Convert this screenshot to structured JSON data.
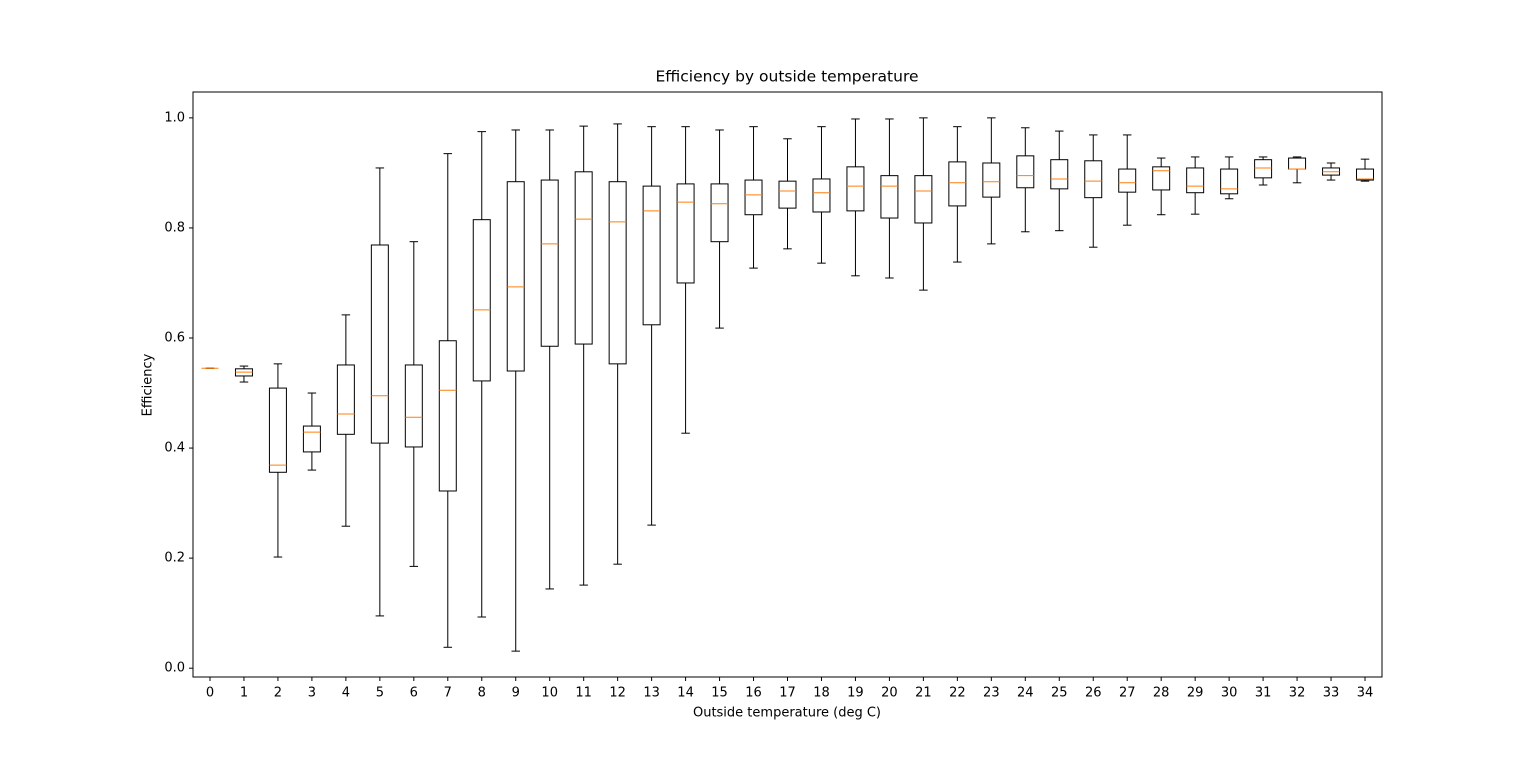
{
  "chart_data": {
    "type": "boxplot",
    "title": "Efficiency by outside temperature",
    "x_label": "Outside temperature (deg C)",
    "y_label": "Efficiency",
    "categories": [
      "0",
      "1",
      "2",
      "3",
      "4",
      "5",
      "6",
      "7",
      "8",
      "9",
      "10",
      "11",
      "12",
      "13",
      "14",
      "15",
      "16",
      "17",
      "18",
      "19",
      "20",
      "21",
      "22",
      "23",
      "24",
      "25",
      "26",
      "27",
      "28",
      "29",
      "30",
      "31",
      "32",
      "33",
      "34"
    ],
    "whislo": [
      0.545,
      0.52,
      0.202,
      0.36,
      0.258,
      0.095,
      0.185,
      0.038,
      0.093,
      0.031,
      0.144,
      0.151,
      0.189,
      0.26,
      0.427,
      0.618,
      0.727,
      0.762,
      0.736,
      0.713,
      0.709,
      0.687,
      0.738,
      0.771,
      0.793,
      0.795,
      0.765,
      0.805,
      0.824,
      0.825,
      0.853,
      0.878,
      0.882,
      0.887,
      0.885
    ],
    "q1": [
      0.545,
      0.531,
      0.356,
      0.393,
      0.425,
      0.409,
      0.402,
      0.322,
      0.522,
      0.54,
      0.585,
      0.589,
      0.553,
      0.624,
      0.7,
      0.775,
      0.824,
      0.836,
      0.829,
      0.831,
      0.818,
      0.809,
      0.84,
      0.856,
      0.873,
      0.871,
      0.855,
      0.865,
      0.869,
      0.864,
      0.862,
      0.891,
      0.907,
      0.896,
      0.887
    ],
    "median": [
      0.545,
      0.538,
      0.369,
      0.429,
      0.462,
      0.495,
      0.456,
      0.505,
      0.651,
      0.693,
      0.771,
      0.816,
      0.811,
      0.831,
      0.847,
      0.844,
      0.86,
      0.867,
      0.864,
      0.876,
      0.876,
      0.867,
      0.882,
      0.884,
      0.895,
      0.889,
      0.885,
      0.882,
      0.904,
      0.876,
      0.871,
      0.909,
      0.907,
      0.902,
      0.889
    ],
    "q3": [
      0.545,
      0.544,
      0.509,
      0.44,
      0.551,
      0.769,
      0.551,
      0.595,
      0.815,
      0.884,
      0.887,
      0.902,
      0.884,
      0.876,
      0.88,
      0.88,
      0.887,
      0.885,
      0.889,
      0.911,
      0.895,
      0.895,
      0.92,
      0.918,
      0.931,
      0.924,
      0.922,
      0.907,
      0.911,
      0.909,
      0.907,
      0.924,
      0.927,
      0.909,
      0.907
    ],
    "whishi": [
      0.545,
      0.549,
      0.553,
      0.5,
      0.642,
      0.909,
      0.775,
      0.935,
      0.975,
      0.978,
      0.978,
      0.985,
      0.989,
      0.984,
      0.984,
      0.978,
      0.984,
      0.962,
      0.984,
      0.998,
      0.998,
      1.0,
      0.984,
      1.0,
      0.982,
      0.976,
      0.969,
      0.969,
      0.927,
      0.929,
      0.929,
      0.929,
      0.929,
      0.918,
      0.925
    ],
    "box_color": "#000000",
    "median_color": "#ff7f0e",
    "ylim": [
      -0.016,
      1.047
    ],
    "yticks": [
      {
        "value": 0,
        "label": "0.0"
      },
      {
        "value": 0.2,
        "label": "0.2"
      },
      {
        "value": 0.4,
        "label": "0.4"
      },
      {
        "value": 0.6,
        "label": "0.6"
      },
      {
        "value": 0.8,
        "label": "0.8"
      },
      {
        "value": 1,
        "label": "1.0"
      }
    ]
  }
}
